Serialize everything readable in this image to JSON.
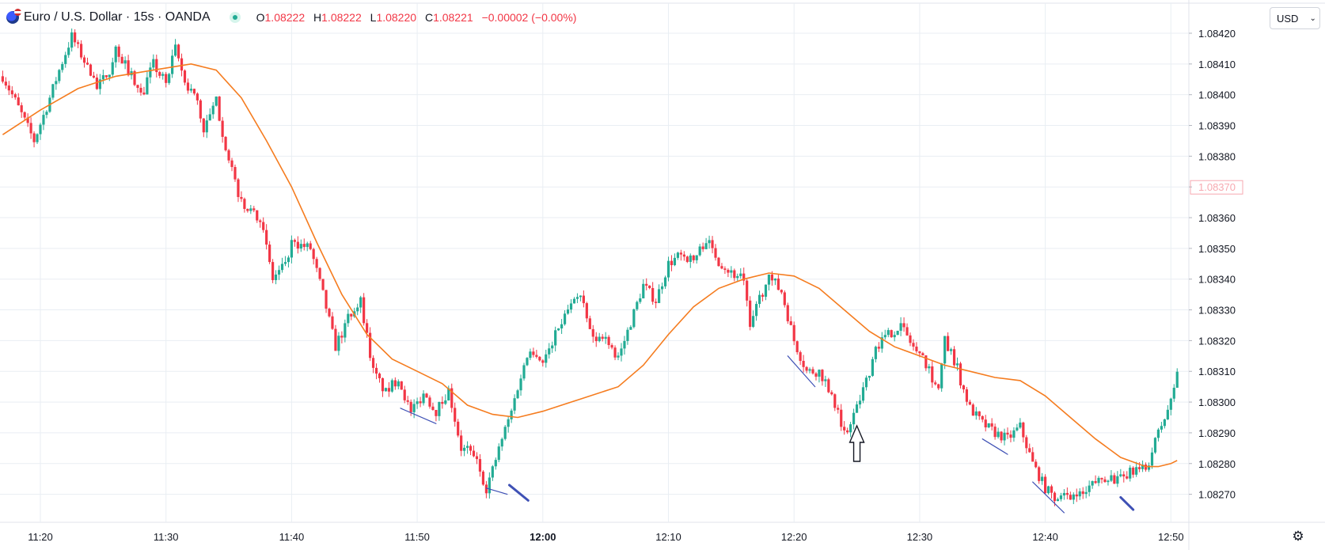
{
  "header": {
    "symbol": "Euro / U.S. Dollar · 15s · OANDA",
    "ohlc": {
      "o_label": "O",
      "o": "1.08222",
      "h_label": "H",
      "h": "1.08222",
      "l_label": "L",
      "l": "1.08220",
      "c_label": "C",
      "c": "1.08221",
      "change": "−0.00002 (−0.00%)"
    },
    "flag_icon": "eurusd-flag-icon",
    "status_icon": "market-open-dot-icon"
  },
  "currency_button": {
    "label": "USD",
    "icon": "chevron-down-icon"
  },
  "settings_icon": "gear-icon",
  "colors": {
    "up": "#22ab94",
    "down": "#f23645",
    "ma": "#f57c1f",
    "annotation": "#3f51b5",
    "grid": "#e9eef3",
    "price_badge": "#f7a9b0"
  },
  "chart_data": {
    "type": "candlestick",
    "time_axis": [
      "11:20",
      "11:30",
      "11:40",
      "11:50",
      "12:00",
      "12:10",
      "12:20",
      "12:30",
      "12:40",
      "12:50"
    ],
    "price_axis": [
      "1.08420",
      "1.08410",
      "1.08400",
      "1.08390",
      "1.08380",
      "1.08370",
      "1.08360",
      "1.08350",
      "1.08340",
      "1.08330",
      "1.08320",
      "1.08310",
      "1.08300",
      "1.08290",
      "1.08280",
      "1.08270"
    ],
    "ylim": [
      1.08265,
      1.08422
    ],
    "highlight_price": "1.08370",
    "close_path": [
      [
        "11:17:00",
        1.08406
      ],
      [
        "11:18:00",
        1.08398
      ],
      [
        "11:19:30",
        1.08385
      ],
      [
        "11:20:30",
        1.08396
      ],
      [
        "11:21:30",
        1.08408
      ],
      [
        "11:22:30",
        1.08419
      ],
      [
        "11:23:30",
        1.08411
      ],
      [
        "11:24:30",
        1.08402
      ],
      [
        "11:25:30",
        1.08408
      ],
      [
        "11:26:00",
        1.08415
      ],
      [
        "11:27:00",
        1.08408
      ],
      [
        "11:28:00",
        1.084
      ],
      [
        "11:29:00",
        1.0841
      ],
      [
        "11:30:00",
        1.08403
      ],
      [
        "11:30:45",
        1.08415
      ],
      [
        "11:31:30",
        1.08404
      ],
      [
        "11:32:30",
        1.08398
      ],
      [
        "11:33:00",
        1.08388
      ],
      [
        "11:34:00",
        1.08398
      ],
      [
        "11:35:00",
        1.08378
      ],
      [
        "11:36:00",
        1.08365
      ],
      [
        "11:37:30",
        1.0836
      ],
      [
        "11:38:30",
        1.0834
      ],
      [
        "11:39:30",
        1.08345
      ],
      [
        "11:40:00",
        1.08352
      ],
      [
        "11:41:30",
        1.0835
      ],
      [
        "11:42:30",
        1.08335
      ],
      [
        "11:43:30",
        1.08318
      ],
      [
        "11:44:30",
        1.08328
      ],
      [
        "11:45:30",
        1.08333
      ],
      [
        "11:46:30",
        1.0831
      ],
      [
        "11:47:30",
        1.08303
      ],
      [
        "11:48:30",
        1.08308
      ],
      [
        "11:49:30",
        1.08296
      ],
      [
        "11:50:30",
        1.08303
      ],
      [
        "11:51:30",
        1.08297
      ],
      [
        "11:52:30",
        1.08304
      ],
      [
        "11:53:30",
        1.08285
      ],
      [
        "11:54:30",
        1.08283
      ],
      [
        "11:55:30",
        1.08272
      ],
      [
        "11:56:00",
        1.08278
      ],
      [
        "11:56:45",
        1.08288
      ],
      [
        "11:57:30",
        1.08297
      ],
      [
        "11:58:00",
        1.08305
      ],
      [
        "11:59:00",
        1.08318
      ],
      [
        "12:00:00",
        1.08313
      ],
      [
        "12:01:00",
        1.08322
      ],
      [
        "12:02:00",
        1.0833
      ],
      [
        "12:03:00",
        1.08334
      ],
      [
        "12:04:00",
        1.0832
      ],
      [
        "12:05:00",
        1.08322
      ],
      [
        "12:06:00",
        1.08314
      ],
      [
        "12:07:00",
        1.08326
      ],
      [
        "12:08:00",
        1.08338
      ],
      [
        "12:09:00",
        1.08333
      ],
      [
        "12:10:00",
        1.08345
      ],
      [
        "12:11:00",
        1.08348
      ],
      [
        "12:12:00",
        1.08346
      ],
      [
        "12:13:00",
        1.08353
      ],
      [
        "12:14:00",
        1.08346
      ],
      [
        "12:15:00",
        1.08342
      ],
      [
        "12:16:00",
        1.0834
      ],
      [
        "12:16:30",
        1.08323
      ],
      [
        "12:17:00",
        1.08332
      ],
      [
        "12:18:00",
        1.0834
      ],
      [
        "12:19:00",
        1.08336
      ],
      [
        "12:20:00",
        1.0832
      ],
      [
        "12:21:00",
        1.0831
      ],
      [
        "12:22:00",
        1.0831
      ],
      [
        "12:23:00",
        1.08303
      ],
      [
        "12:24:00",
        1.0829
      ],
      [
        "12:25:00",
        1.08298
      ],
      [
        "12:26:00",
        1.0831
      ],
      [
        "12:26:30",
        1.08318
      ],
      [
        "12:27:30",
        1.08322
      ],
      [
        "12:28:30",
        1.08325
      ],
      [
        "12:29:30",
        1.08318
      ],
      [
        "12:30:30",
        1.08312
      ],
      [
        "12:31:30",
        1.08304
      ],
      [
        "12:32:00",
        1.0832
      ],
      [
        "12:33:00",
        1.0831
      ],
      [
        "12:34:00",
        1.08298
      ],
      [
        "12:35:00",
        1.08293
      ],
      [
        "12:36:00",
        1.0829
      ],
      [
        "12:37:00",
        1.08288
      ],
      [
        "12:38:00",
        1.08292
      ],
      [
        "12:39:00",
        1.0828
      ],
      [
        "12:40:00",
        1.08272
      ],
      [
        "12:41:00",
        1.08268
      ],
      [
        "12:42:00",
        1.0827
      ],
      [
        "12:43:00",
        1.0827
      ],
      [
        "12:44:00",
        1.08274
      ],
      [
        "12:45:00",
        1.08276
      ],
      [
        "12:46:00",
        1.08274
      ],
      [
        "12:47:00",
        1.08278
      ],
      [
        "12:48:00",
        1.08278
      ],
      [
        "12:49:00",
        1.0829
      ],
      [
        "12:49:30",
        1.08295
      ],
      [
        "12:50:00",
        1.083
      ],
      [
        "12:50:30",
        1.0831
      ]
    ],
    "moving_average": [
      [
        "11:17:00",
        1.08387
      ],
      [
        "11:20:00",
        1.08395
      ],
      [
        "11:23:00",
        1.08402
      ],
      [
        "11:26:00",
        1.08406
      ],
      [
        "11:29:00",
        1.08408
      ],
      [
        "11:32:00",
        1.0841
      ],
      [
        "11:34:00",
        1.08408
      ],
      [
        "11:36:00",
        1.08399
      ],
      [
        "11:38:00",
        1.08385
      ],
      [
        "11:40:00",
        1.0837
      ],
      [
        "11:42:00",
        1.08352
      ],
      [
        "11:44:00",
        1.08335
      ],
      [
        "11:46:00",
        1.08322
      ],
      [
        "11:48:00",
        1.08314
      ],
      [
        "11:50:00",
        1.0831
      ],
      [
        "11:52:00",
        1.08306
      ],
      [
        "11:54:00",
        1.08299
      ],
      [
        "11:56:00",
        1.08296
      ],
      [
        "11:58:00",
        1.08295
      ],
      [
        "12:00:00",
        1.08297
      ],
      [
        "12:03:00",
        1.08301
      ],
      [
        "12:06:00",
        1.08305
      ],
      [
        "12:08:00",
        1.08312
      ],
      [
        "12:10:00",
        1.08322
      ],
      [
        "12:12:00",
        1.08331
      ],
      [
        "12:14:00",
        1.08337
      ],
      [
        "12:16:00",
        1.0834
      ],
      [
        "12:18:00",
        1.08342
      ],
      [
        "12:20:00",
        1.08341
      ],
      [
        "12:22:00",
        1.08337
      ],
      [
        "12:24:00",
        1.0833
      ],
      [
        "12:26:00",
        1.08323
      ],
      [
        "12:28:00",
        1.08318
      ],
      [
        "12:30:00",
        1.08315
      ],
      [
        "12:32:00",
        1.08312
      ],
      [
        "12:34:00",
        1.0831
      ],
      [
        "12:36:00",
        1.08308
      ],
      [
        "12:38:00",
        1.08307
      ],
      [
        "12:40:00",
        1.08302
      ],
      [
        "12:42:00",
        1.08295
      ],
      [
        "12:44:00",
        1.08288
      ],
      [
        "12:46:00",
        1.08282
      ],
      [
        "12:48:00",
        1.08279
      ],
      [
        "12:49:00",
        1.08279
      ],
      [
        "12:50:00",
        1.0828
      ],
      [
        "12:50:30",
        1.08281
      ]
    ],
    "annotations": [
      {
        "type": "trendline",
        "from": [
          "11:48:40",
          1.08298
        ],
        "to": [
          "11:51:30",
          1.08293
        ],
        "weight": "thin"
      },
      {
        "type": "trendline",
        "from": [
          "11:55:30",
          1.08272
        ],
        "to": [
          "11:57:10",
          1.0827
        ],
        "weight": "thin"
      },
      {
        "type": "trendline",
        "from": [
          "11:57:20",
          1.08273
        ],
        "to": [
          "11:58:50",
          1.08268
        ],
        "weight": "bold"
      },
      {
        "type": "trendline",
        "from": [
          "12:19:30",
          1.08315
        ],
        "to": [
          "12:21:40",
          1.08305
        ],
        "weight": "thin"
      },
      {
        "type": "trendline",
        "from": [
          "12:35:00",
          1.08288
        ],
        "to": [
          "12:37:00",
          1.08283
        ],
        "weight": "thin"
      },
      {
        "type": "trendline",
        "from": [
          "12:39:00",
          1.08274
        ],
        "to": [
          "12:41:30",
          1.08264
        ],
        "weight": "thin"
      },
      {
        "type": "trendline",
        "from": [
          "12:46:00",
          1.08269
        ],
        "to": [
          "12:47:00",
          1.08265
        ],
        "weight": "bold"
      },
      {
        "type": "arrow_up",
        "at": [
          "12:25:00",
          1.08282
        ]
      }
    ]
  }
}
